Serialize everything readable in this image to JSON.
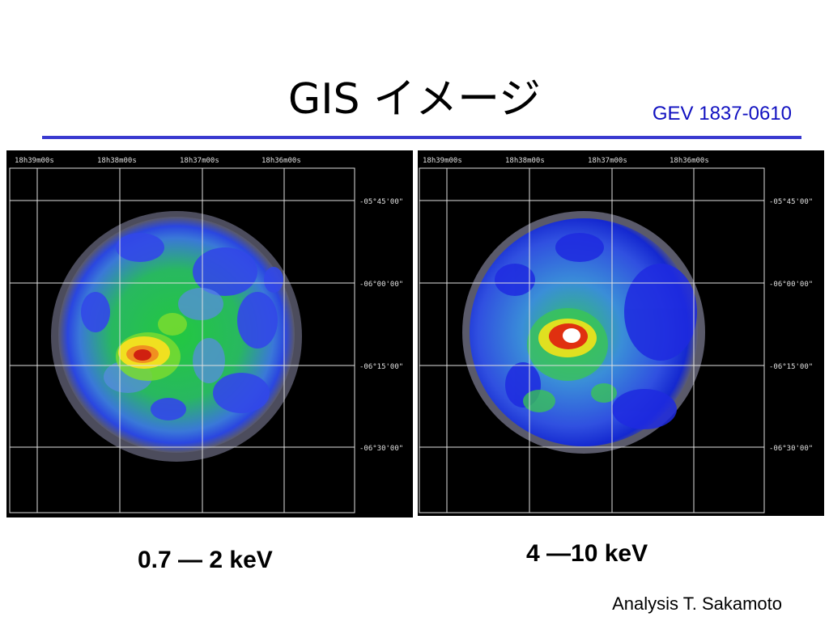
{
  "slide": {
    "title": "GIS イメージ",
    "object_id": "GEV 1837-0610",
    "credit": "Analysis T. Sakamoto"
  },
  "panels": [
    {
      "band": "0.7 ― 2 keV",
      "ra_ticks": [
        "18h39m00s",
        "18h38m00s",
        "18h37m00s",
        "18h36m00s"
      ],
      "dec_ticks": [
        "-05°45'00\"",
        "-06°00'00\"",
        "-06°15'00\"",
        "-06°30'00\""
      ]
    },
    {
      "band": "4 ―10 keV",
      "ra_ticks": [
        "18h39m00s",
        "18h38m00s",
        "18h37m00s",
        "18h36m00s"
      ],
      "dec_ticks": [
        "-05°45'00\"",
        "-06°00'00\"",
        "-06°15'00\"",
        "-06°30'00\""
      ]
    }
  ]
}
